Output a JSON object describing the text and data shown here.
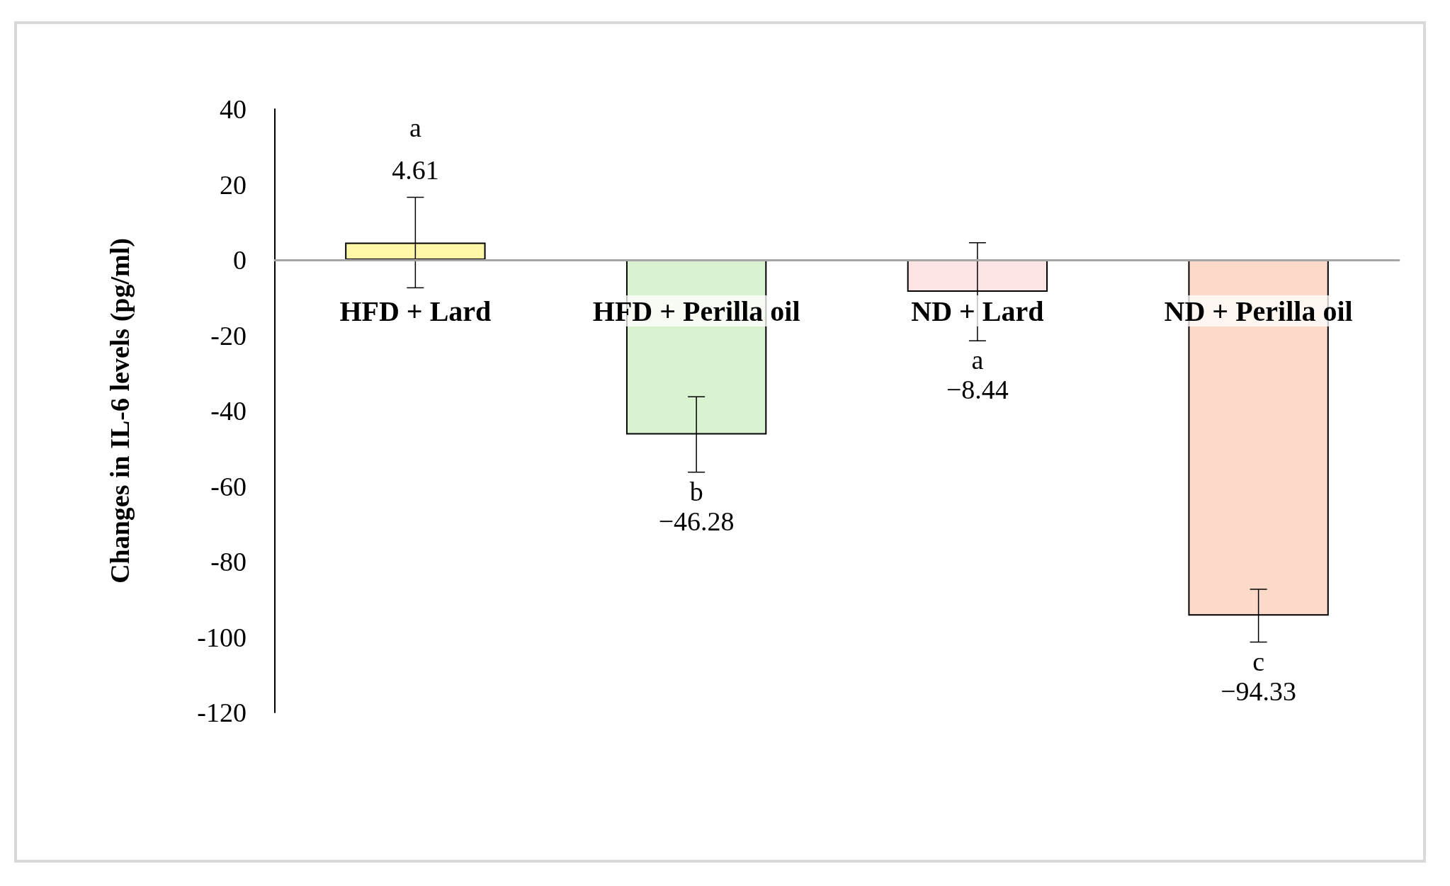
{
  "chart_data": {
    "type": "bar",
    "ylabel": "Changes in IL-6 levels (pg/ml)",
    "categories": [
      "HFD + Lard",
      "HFD + Perilla oil",
      "ND + Lard",
      "ND + Perilla oil"
    ],
    "values": [
      4.61,
      -46.28,
      -8.44,
      -94.33
    ],
    "colors": [
      "#fff7a8",
      "#d9f2d0",
      "#fce4e4",
      "#fcd9c8"
    ],
    "errors": [
      12,
      10,
      13,
      7
    ],
    "value_labels": [
      "4.61",
      "−46.28",
      "−8.44",
      "−94.33"
    ],
    "annotations": [
      "a",
      "b",
      "a",
      "c"
    ],
    "ylim": [
      -120,
      40
    ],
    "yticks": [
      -120,
      -100,
      -80,
      -60,
      -40,
      -20,
      0,
      20,
      40
    ]
  }
}
